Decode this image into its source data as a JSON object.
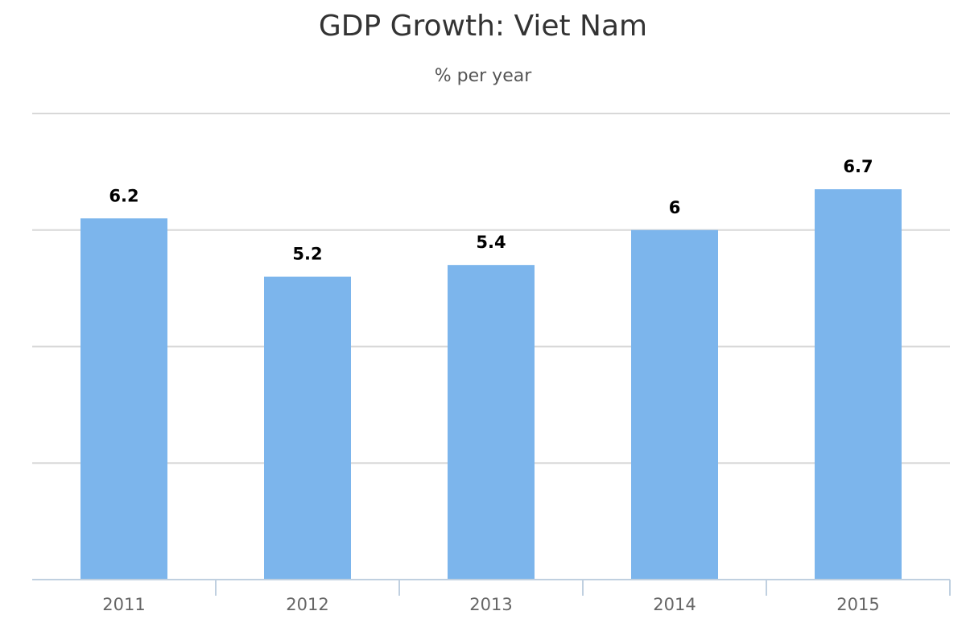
{
  "chart_data": {
    "type": "bar",
    "title": "GDP Growth: Viet Nam",
    "subtitle": "% per year",
    "categories": [
      "2011",
      "2012",
      "2013",
      "2014",
      "2015"
    ],
    "values": [
      6.2,
      5.2,
      5.4,
      6,
      6.7
    ],
    "data_labels": [
      "6.2",
      "5.2",
      "5.4",
      "6",
      "6.7"
    ],
    "ylim": [
      0,
      8
    ],
    "y_gridlines": [
      0,
      2,
      4,
      6,
      8
    ],
    "y_tick_labels_shown": false,
    "grid": true,
    "legend": "none",
    "bar_color": "#7cb5ec"
  }
}
